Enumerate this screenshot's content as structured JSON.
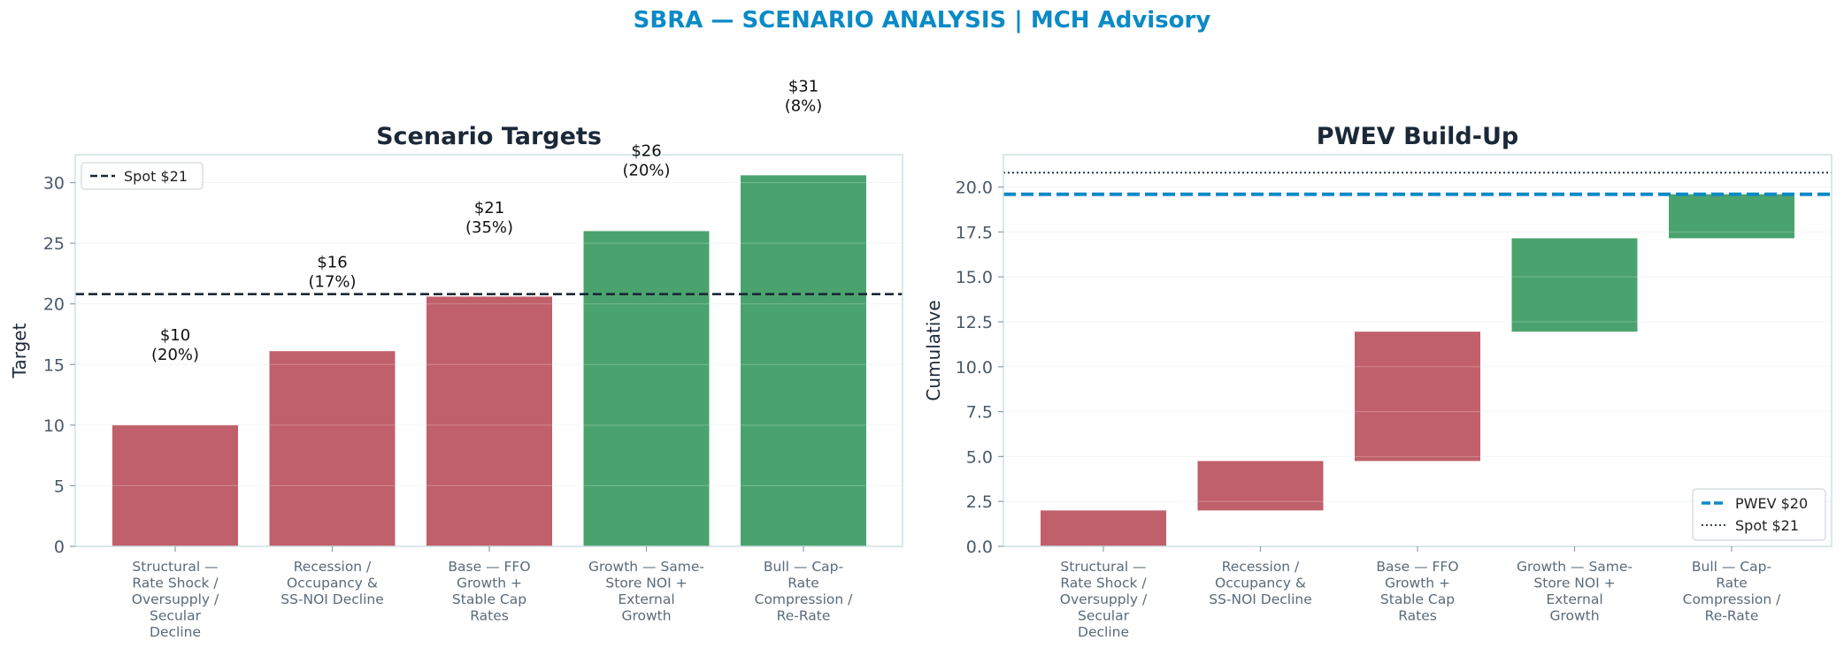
{
  "suptitle": "SBRA — SCENARIO ANALYSIS | MCH Advisory",
  "colors": {
    "bear": "#c0606b",
    "bull": "#4aa36e",
    "accent": "#0a8ac6",
    "spot_line": "#1b2838",
    "text_dark": "#1b2838",
    "tick_text": "#4a5a6a",
    "frame": "#cfe0e6",
    "grid": "#eef2f5"
  },
  "chart_data": [
    {
      "type": "bar",
      "title": "Scenario Targets",
      "xlabel": "",
      "ylabel": "Target",
      "ylim": [
        0,
        32.3
      ],
      "yticks": [
        0,
        5,
        10,
        15,
        20,
        25,
        30
      ],
      "ytick_labels": [
        "0",
        "5",
        "10",
        "15",
        "20",
        "25",
        "30"
      ],
      "categories": [
        [
          "Structural —",
          "Rate Shock /",
          "Oversupply /",
          "Secular",
          "Decline"
        ],
        [
          "Recession /",
          "Occupancy &",
          "SS-NOI Decline"
        ],
        [
          "Base — FFO",
          "Growth +",
          "Stable Cap",
          "Rates"
        ],
        [
          "Growth — Same-",
          "Store NOI +",
          "External",
          "Growth"
        ],
        [
          "Bull — Cap-",
          "Rate",
          "Compression /",
          "Re-Rate"
        ]
      ],
      "values": [
        10,
        16.1,
        20.6,
        26,
        30.6
      ],
      "bar_colors": [
        "bear",
        "bear",
        "bear",
        "bull",
        "bull"
      ],
      "data_labels": [
        [
          "$10",
          "(20%)"
        ],
        [
          "$16",
          "(17%)"
        ],
        [
          "$21",
          "(35%)"
        ],
        [
          "$26",
          "(20%)"
        ],
        [
          "$31",
          "(8%)"
        ]
      ],
      "label_values": [
        17,
        23,
        27.5,
        32.2,
        37.5
      ],
      "spot": 20.8,
      "legend": [
        {
          "label": "Spot $21",
          "style": "dashed"
        }
      ],
      "legend_position": "upper-left",
      "grid": true
    },
    {
      "type": "waterfall",
      "title": "PWEV Build-Up",
      "xlabel": "",
      "ylabel": "Cumulative",
      "ylim": [
        0,
        21.8
      ],
      "yticks": [
        0,
        2.5,
        5,
        7.5,
        10,
        12.5,
        15,
        17.5,
        20
      ],
      "ytick_labels": [
        "0.0",
        "2.5",
        "5.0",
        "7.5",
        "10.0",
        "12.5",
        "15.0",
        "17.5",
        "20.0"
      ],
      "categories": [
        [
          "Structural —",
          "Rate Shock /",
          "Oversupply /",
          "Secular",
          "Decline"
        ],
        [
          "Recession /",
          "Occupancy &",
          "SS-NOI Decline"
        ],
        [
          "Base — FFO",
          "Growth +",
          "Stable Cap",
          "Rates"
        ],
        [
          "Growth — Same-",
          "Store NOI +",
          "External",
          "Growth"
        ],
        [
          "Bull — Cap-",
          "Rate",
          "Compression /",
          "Re-Rate"
        ]
      ],
      "segments": [
        [
          0,
          2.0
        ],
        [
          2.0,
          4.75
        ],
        [
          4.75,
          11.95
        ],
        [
          11.95,
          17.15
        ],
        [
          17.15,
          19.6
        ]
      ],
      "bar_colors": [
        "bear",
        "bear",
        "bear",
        "bull",
        "bull"
      ],
      "pwev": 19.6,
      "spot": 20.8,
      "legend": [
        {
          "label": "PWEV $20",
          "style": "dashed-accent"
        },
        {
          "label": "Spot $21",
          "style": "dotted"
        }
      ],
      "legend_position": "lower-right",
      "grid": true
    }
  ]
}
